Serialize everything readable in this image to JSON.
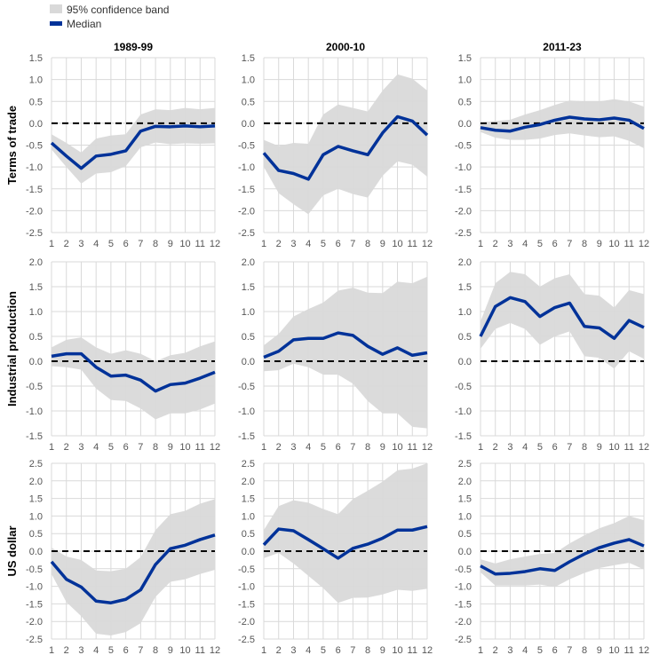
{
  "chart_data": {
    "type": "line",
    "legend": {
      "placement": "top-left",
      "band_label": "95% confidence band",
      "median_label": "Median"
    },
    "colors": {
      "band": "#d9d9d9",
      "median": "#003299",
      "zero": "#000000",
      "grid": "#d9d9d9"
    },
    "x": [
      1,
      2,
      3,
      4,
      5,
      6,
      7,
      8,
      9,
      10,
      11,
      12
    ],
    "columns": [
      "1989-99",
      "2000-10",
      "2011-23"
    ],
    "rows": [
      {
        "label": "Terms of trade",
        "ylim": [
          -2.5,
          1.5
        ],
        "ticks": [
          "1.5",
          "1.0",
          "0.5",
          "0.0",
          "-0.5",
          "-1.0",
          "-1.5",
          "-2.0",
          "-2.5"
        ],
        "panels": [
          {
            "median": [
              -0.45,
              -0.75,
              -1.03,
              -0.75,
              -0.71,
              -0.63,
              -0.18,
              -0.07,
              -0.08,
              -0.06,
              -0.08,
              -0.06
            ],
            "lower": [
              -0.6,
              -1.0,
              -1.38,
              -1.15,
              -1.12,
              -0.98,
              -0.55,
              -0.44,
              -0.48,
              -0.46,
              -0.47,
              -0.46
            ],
            "upper": [
              -0.25,
              -0.45,
              -0.67,
              -0.35,
              -0.28,
              -0.25,
              0.2,
              0.32,
              0.3,
              0.35,
              0.32,
              0.35
            ]
          },
          {
            "median": [
              -0.68,
              -1.08,
              -1.15,
              -1.28,
              -0.72,
              -0.53,
              -0.63,
              -0.72,
              -0.22,
              0.15,
              0.05,
              -0.27
            ],
            "lower": [
              -1.0,
              -1.6,
              -1.85,
              -2.08,
              -1.65,
              -1.5,
              -1.62,
              -1.7,
              -1.2,
              -0.87,
              -0.95,
              -1.22
            ],
            "upper": [
              -0.38,
              -0.52,
              -0.45,
              -0.47,
              0.2,
              0.43,
              0.35,
              0.27,
              0.75,
              1.12,
              1.02,
              0.75
            ]
          },
          {
            "median": [
              -0.1,
              -0.16,
              -0.18,
              -0.09,
              -0.03,
              0.07,
              0.14,
              0.1,
              0.08,
              0.12,
              0.07,
              -0.12
            ],
            "lower": [
              -0.2,
              -0.33,
              -0.38,
              -0.38,
              -0.35,
              -0.27,
              -0.23,
              -0.28,
              -0.32,
              -0.3,
              -0.4,
              -0.57
            ],
            "upper": [
              0.02,
              0.05,
              0.08,
              0.2,
              0.3,
              0.42,
              0.52,
              0.5,
              0.5,
              0.55,
              0.5,
              0.38
            ]
          }
        ]
      },
      {
        "label": "Industrial production",
        "ylim": [
          -1.5,
          2.0
        ],
        "ticks": [
          "2.0",
          "1.5",
          "1.0",
          "0.5",
          "0.0",
          "-0.5",
          "-1.0",
          "-1.5"
        ],
        "panels": [
          {
            "median": [
              0.1,
              0.15,
              0.15,
              -0.12,
              -0.3,
              -0.28,
              -0.38,
              -0.6,
              -0.47,
              -0.44,
              -0.34,
              -0.22
            ],
            "lower": [
              -0.1,
              -0.12,
              -0.17,
              -0.55,
              -0.78,
              -0.8,
              -0.95,
              -1.17,
              -1.05,
              -1.05,
              -0.97,
              -0.85
            ],
            "upper": [
              0.28,
              0.43,
              0.48,
              0.28,
              0.15,
              0.22,
              0.15,
              0.0,
              0.12,
              0.17,
              0.3,
              0.4
            ]
          },
          {
            "median": [
              0.08,
              0.2,
              0.43,
              0.46,
              0.46,
              0.57,
              0.52,
              0.3,
              0.14,
              0.27,
              0.12,
              0.17
            ],
            "lower": [
              -0.2,
              -0.18,
              -0.05,
              -0.12,
              -0.27,
              -0.27,
              -0.45,
              -0.8,
              -1.05,
              -1.05,
              -1.32,
              -1.35
            ],
            "upper": [
              0.32,
              0.55,
              0.9,
              1.05,
              1.18,
              1.42,
              1.48,
              1.38,
              1.37,
              1.6,
              1.57,
              1.7
            ]
          },
          {
            "median": [
              0.5,
              1.1,
              1.28,
              1.2,
              0.9,
              1.08,
              1.17,
              0.7,
              0.67,
              0.46,
              0.82,
              0.68
            ],
            "lower": [
              0.25,
              0.65,
              0.77,
              0.65,
              0.33,
              0.5,
              0.6,
              0.1,
              0.07,
              -0.15,
              0.2,
              0.05
            ],
            "upper": [
              0.8,
              1.57,
              1.8,
              1.75,
              1.5,
              1.67,
              1.75,
              1.35,
              1.32,
              1.08,
              1.43,
              1.35
            ]
          }
        ]
      },
      {
        "label": "US dollar",
        "ylim": [
          -2.5,
          2.5
        ],
        "ticks": [
          "2.5",
          "2.0",
          "1.5",
          "1.0",
          "0.5",
          "0.0",
          "-0.5",
          "-1.0",
          "-1.5",
          "-2.0",
          "-2.5"
        ],
        "panels": [
          {
            "median": [
              -0.3,
              -0.8,
              -1.02,
              -1.42,
              -1.47,
              -1.37,
              -1.1,
              -0.38,
              0.07,
              0.17,
              0.33,
              0.46
            ],
            "lower": [
              -0.65,
              -1.45,
              -1.85,
              -2.35,
              -2.4,
              -2.3,
              -2.05,
              -1.3,
              -0.87,
              -0.8,
              -0.65,
              -0.53
            ],
            "upper": [
              0.1,
              -0.15,
              -0.25,
              -0.55,
              -0.57,
              -0.5,
              -0.17,
              0.6,
              1.05,
              1.15,
              1.35,
              1.48
            ]
          },
          {
            "median": [
              0.18,
              0.63,
              0.58,
              0.33,
              0.07,
              -0.2,
              0.08,
              0.2,
              0.37,
              0.6,
              0.6,
              0.7
            ],
            "lower": [
              -0.2,
              -0.05,
              -0.35,
              -0.7,
              -1.05,
              -1.47,
              -1.33,
              -1.32,
              -1.23,
              -1.1,
              -1.13,
              -1.07
            ],
            "upper": [
              0.6,
              1.28,
              1.45,
              1.38,
              1.2,
              1.05,
              1.48,
              1.72,
              1.98,
              2.3,
              2.35,
              2.5
            ]
          },
          {
            "median": [
              -0.42,
              -0.65,
              -0.63,
              -0.58,
              -0.5,
              -0.55,
              -0.3,
              -0.08,
              0.1,
              0.23,
              0.33,
              0.15
            ],
            "lower": [
              -0.6,
              -0.98,
              -0.98,
              -0.98,
              -0.95,
              -1.02,
              -0.8,
              -0.62,
              -0.48,
              -0.4,
              -0.33,
              -0.52
            ],
            "upper": [
              -0.23,
              -0.35,
              -0.23,
              -0.15,
              -0.08,
              -0.05,
              0.22,
              0.45,
              0.65,
              0.8,
              1.0,
              0.88
            ]
          }
        ]
      }
    ]
  }
}
